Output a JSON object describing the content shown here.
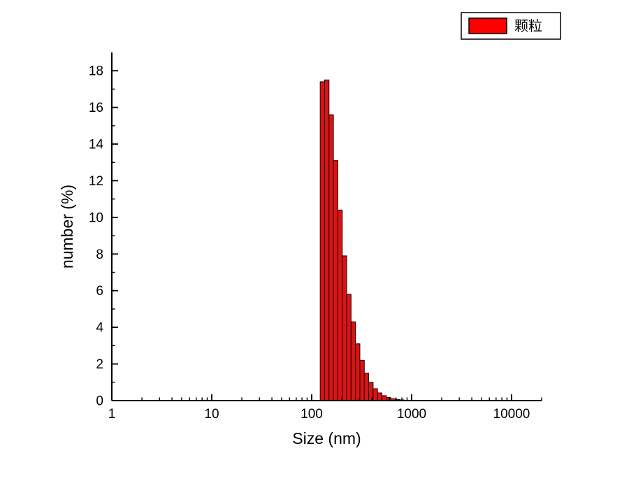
{
  "chart_data": {
    "type": "bar",
    "title": "",
    "xlabel": "Size (nm)",
    "ylabel": "number (%)",
    "x_scale": "log",
    "xlim": [
      1,
      20000
    ],
    "ylim": [
      0,
      19
    ],
    "x_major_ticks": [
      1,
      10,
      100,
      1000,
      10000
    ],
    "x_major_tick_labels": [
      "1",
      "10",
      "100",
      "1000",
      "10000"
    ],
    "y_major_ticks": [
      0,
      2,
      4,
      6,
      8,
      10,
      12,
      14,
      16,
      18
    ],
    "grid": false,
    "legend_position": "top-right",
    "background": "#ffffff",
    "axis_color": "#000000",
    "bin_ratio": 1.107,
    "legend": {
      "label": "颗粒",
      "swatch_color": "#ff0000",
      "swatch_edge_color": "#000000",
      "box_edge_color": "#000000"
    },
    "series": [
      {
        "name": "颗粒",
        "color": "#d81414",
        "edge_color": "#230000",
        "sizes_nm": [
          128.0,
          141.7,
          156.9,
          173.6,
          192.2,
          212.8,
          235.5,
          260.7,
          288.6,
          319.5,
          353.7,
          391.5,
          433.3,
          479.7,
          531.0,
          587.8,
          650.7,
          720.3,
          797.3,
          882.6
        ],
        "values_pct": [
          17.4,
          17.5,
          15.6,
          13.1,
          10.4,
          7.9,
          5.8,
          4.3,
          3.1,
          2.2,
          1.5,
          1.0,
          0.65,
          0.42,
          0.27,
          0.17,
          0.1,
          0.06,
          0.04,
          0.02
        ]
      }
    ]
  }
}
